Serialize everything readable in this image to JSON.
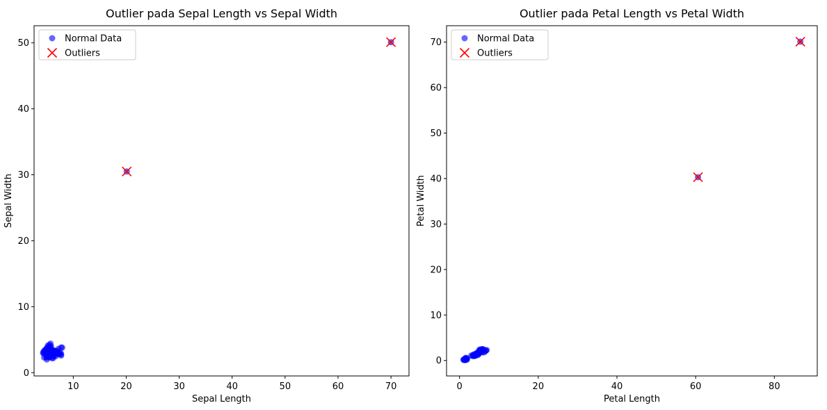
{
  "chart_data": [
    {
      "type": "scatter",
      "title": "Outlier pada Sepal Length vs Sepal Width",
      "xlabel": "Sepal Length",
      "ylabel": "Sepal Width",
      "xlim": [
        2.6,
        73.4
      ],
      "ylim": [
        -0.5,
        52.6
      ],
      "xticks": [
        10,
        20,
        30,
        40,
        50,
        60,
        70
      ],
      "yticks": [
        0,
        10,
        20,
        30,
        40,
        50
      ],
      "legend_position": "upper-left",
      "series": [
        {
          "name": "Normal Data",
          "marker": "circle",
          "color": "#0000ff",
          "points": [
            [
              4.3,
              3.0
            ],
            [
              4.4,
              2.9
            ],
            [
              4.4,
              3.2
            ],
            [
              4.5,
              2.3
            ],
            [
              4.6,
              3.1
            ],
            [
              4.6,
              3.4
            ],
            [
              4.7,
              3.2
            ],
            [
              4.8,
              3.4
            ],
            [
              4.8,
              3.0
            ],
            [
              4.9,
              3.0
            ],
            [
              4.9,
              2.4
            ],
            [
              4.9,
              3.6
            ],
            [
              5.0,
              3.6
            ],
            [
              5.0,
              3.4
            ],
            [
              5.0,
              2.0
            ],
            [
              5.0,
              2.3
            ],
            [
              5.1,
              3.5
            ],
            [
              5.1,
              3.8
            ],
            [
              5.1,
              2.5
            ],
            [
              5.2,
              3.5
            ],
            [
              5.2,
              4.1
            ],
            [
              5.2,
              2.7
            ],
            [
              5.3,
              3.7
            ],
            [
              5.4,
              3.9
            ],
            [
              5.4,
              3.4
            ],
            [
              5.4,
              3.0
            ],
            [
              5.5,
              4.2
            ],
            [
              5.5,
              2.3
            ],
            [
              5.5,
              2.4
            ],
            [
              5.6,
              2.9
            ],
            [
              5.6,
              2.5
            ],
            [
              5.6,
              3.0
            ],
            [
              5.7,
              4.4
            ],
            [
              5.7,
              3.8
            ],
            [
              5.7,
              2.8
            ],
            [
              5.7,
              2.6
            ],
            [
              5.8,
              4.0
            ],
            [
              5.8,
              2.7
            ],
            [
              5.8,
              2.8
            ],
            [
              5.9,
              3.0
            ],
            [
              5.9,
              3.2
            ],
            [
              6.0,
              2.2
            ],
            [
              6.0,
              2.9
            ],
            [
              6.0,
              3.4
            ],
            [
              6.1,
              2.8
            ],
            [
              6.1,
              3.0
            ],
            [
              6.1,
              2.6
            ],
            [
              6.2,
              2.2
            ],
            [
              6.2,
              2.9
            ],
            [
              6.2,
              3.4
            ],
            [
              6.3,
              3.3
            ],
            [
              6.3,
              2.5
            ],
            [
              6.3,
              2.7
            ],
            [
              6.4,
              3.2
            ],
            [
              6.4,
              2.8
            ],
            [
              6.4,
              3.1
            ],
            [
              6.5,
              2.8
            ],
            [
              6.5,
              3.0
            ],
            [
              6.6,
              2.9
            ],
            [
              6.7,
              3.1
            ],
            [
              6.7,
              2.5
            ],
            [
              6.7,
              3.3
            ],
            [
              6.8,
              2.8
            ],
            [
              6.8,
              3.2
            ],
            [
              6.9,
              3.1
            ],
            [
              6.9,
              3.2
            ],
            [
              7.0,
              3.2
            ],
            [
              7.1,
              3.0
            ],
            [
              7.2,
              3.6
            ],
            [
              7.2,
              3.0
            ],
            [
              7.3,
              2.9
            ],
            [
              7.4,
              2.8
            ],
            [
              7.6,
              3.0
            ],
            [
              7.7,
              3.8
            ],
            [
              7.7,
              2.6
            ],
            [
              7.7,
              2.8
            ],
            [
              7.9,
              3.8
            ],
            [
              20.1,
              30.5
            ],
            [
              70.0,
              50.1
            ]
          ]
        },
        {
          "name": "Outliers",
          "marker": "x",
          "color": "#ff0000",
          "points": [
            [
              20.1,
              30.5
            ],
            [
              70.0,
              50.1
            ]
          ]
        }
      ]
    },
    {
      "type": "scatter",
      "title": "Outlier pada Petal Length vs Petal Width",
      "xlabel": "Petal Length",
      "ylabel": "Petal Width",
      "xlim": [
        -3.3,
        90.9
      ],
      "ylim": [
        -3.4,
        73.6
      ],
      "xticks": [
        0,
        20,
        40,
        60,
        80
      ],
      "yticks": [
        0,
        10,
        20,
        30,
        40,
        50,
        60,
        70
      ],
      "legend_position": "upper-left",
      "series": [
        {
          "name": "Normal Data",
          "marker": "circle",
          "color": "#0000ff",
          "points": [
            [
              1.0,
              0.2
            ],
            [
              1.1,
              0.1
            ],
            [
              1.2,
              0.2
            ],
            [
              1.3,
              0.2
            ],
            [
              1.3,
              0.3
            ],
            [
              1.4,
              0.2
            ],
            [
              1.4,
              0.1
            ],
            [
              1.4,
              0.3
            ],
            [
              1.5,
              0.2
            ],
            [
              1.5,
              0.4
            ],
            [
              1.5,
              0.1
            ],
            [
              1.6,
              0.2
            ],
            [
              1.6,
              0.6
            ],
            [
              1.7,
              0.4
            ],
            [
              1.7,
              0.5
            ],
            [
              1.9,
              0.2
            ],
            [
              1.9,
              0.4
            ],
            [
              3.0,
              1.1
            ],
            [
              3.3,
              1.0
            ],
            [
              3.5,
              1.0
            ],
            [
              3.6,
              1.3
            ],
            [
              3.7,
              1.0
            ],
            [
              3.8,
              1.1
            ],
            [
              3.9,
              1.2
            ],
            [
              3.9,
              1.4
            ],
            [
              4.0,
              1.0
            ],
            [
              4.0,
              1.3
            ],
            [
              4.1,
              1.3
            ],
            [
              4.2,
              1.2
            ],
            [
              4.2,
              1.5
            ],
            [
              4.3,
              1.3
            ],
            [
              4.4,
              1.4
            ],
            [
              4.5,
              1.5
            ],
            [
              4.5,
              1.7
            ],
            [
              4.6,
              1.4
            ],
            [
              4.7,
              1.2
            ],
            [
              4.7,
              1.6
            ],
            [
              4.8,
              1.8
            ],
            [
              4.9,
              1.5
            ],
            [
              4.9,
              2.0
            ],
            [
              5.0,
              1.7
            ],
            [
              5.0,
              2.0
            ],
            [
              5.1,
              1.9
            ],
            [
              5.1,
              2.4
            ],
            [
              5.2,
              2.3
            ],
            [
              5.3,
              1.9
            ],
            [
              5.4,
              2.1
            ],
            [
              5.5,
              1.8
            ],
            [
              5.6,
              2.4
            ],
            [
              5.6,
              2.2
            ],
            [
              5.7,
              2.5
            ],
            [
              5.8,
              1.8
            ],
            [
              5.9,
              2.3
            ],
            [
              6.0,
              2.5
            ],
            [
              6.1,
              2.3
            ],
            [
              6.3,
              1.8
            ],
            [
              6.6,
              2.1
            ],
            [
              6.7,
              2.2
            ],
            [
              6.9,
              2.3
            ],
            [
              60.6,
              40.3
            ],
            [
              86.6,
              70.1
            ]
          ]
        },
        {
          "name": "Outliers",
          "marker": "x",
          "color": "#ff0000",
          "points": [
            [
              60.6,
              40.3
            ],
            [
              86.6,
              70.1
            ]
          ]
        }
      ]
    }
  ]
}
